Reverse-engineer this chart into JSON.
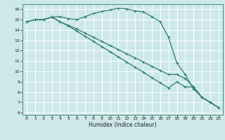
{
  "title": "",
  "xlabel": "Humidex (Indice chaleur)",
  "background_color": "#cde8e8",
  "grid_color": "#ffffff",
  "line_color": "#2e7d6e",
  "xlim": [
    -0.5,
    23.5
  ],
  "ylim": [
    5.8,
    16.5
  ],
  "yticks": [
    6,
    7,
    8,
    9,
    10,
    11,
    12,
    13,
    14,
    15,
    16
  ],
  "xticks": [
    0,
    1,
    2,
    3,
    4,
    5,
    6,
    7,
    8,
    9,
    10,
    11,
    12,
    13,
    14,
    15,
    16,
    17,
    18,
    19,
    20,
    21,
    22,
    23
  ],
  "line1_x": [
    0,
    1,
    2,
    3,
    4,
    5,
    6,
    7,
    8,
    9,
    10,
    11,
    12,
    13,
    14,
    15,
    16,
    17,
    18,
    19,
    20,
    21,
    22,
    23
  ],
  "line1_y": [
    14.8,
    15.0,
    15.0,
    15.25,
    15.3,
    15.1,
    15.0,
    15.3,
    15.6,
    15.8,
    15.95,
    16.1,
    16.05,
    15.85,
    15.75,
    15.3,
    14.8,
    13.3,
    10.8,
    9.7,
    8.3,
    7.5,
    7.0,
    6.5
  ],
  "line2_x": [
    0,
    1,
    2,
    3,
    4,
    5,
    6,
    7,
    8,
    9,
    10,
    11,
    12,
    13,
    14,
    15,
    16,
    17,
    18,
    19,
    20,
    21,
    22,
    23
  ],
  "line2_y": [
    14.8,
    15.0,
    15.0,
    15.25,
    14.8,
    14.45,
    14.1,
    13.7,
    13.3,
    12.9,
    12.5,
    12.1,
    11.7,
    11.3,
    10.9,
    10.5,
    10.1,
    9.7,
    9.7,
    9.3,
    8.5,
    7.5,
    7.0,
    6.5
  ],
  "line3_x": [
    0,
    1,
    2,
    3,
    4,
    5,
    6,
    7,
    8,
    9,
    10,
    11,
    12,
    13,
    14,
    15,
    16,
    17,
    18,
    19,
    20,
    21,
    22,
    23
  ],
  "line3_y": [
    14.8,
    15.0,
    15.0,
    15.25,
    14.8,
    14.4,
    13.9,
    13.4,
    12.9,
    12.4,
    11.9,
    11.4,
    10.9,
    10.4,
    9.9,
    9.4,
    8.9,
    8.4,
    9.0,
    8.5,
    8.5,
    7.5,
    7.0,
    6.5
  ]
}
